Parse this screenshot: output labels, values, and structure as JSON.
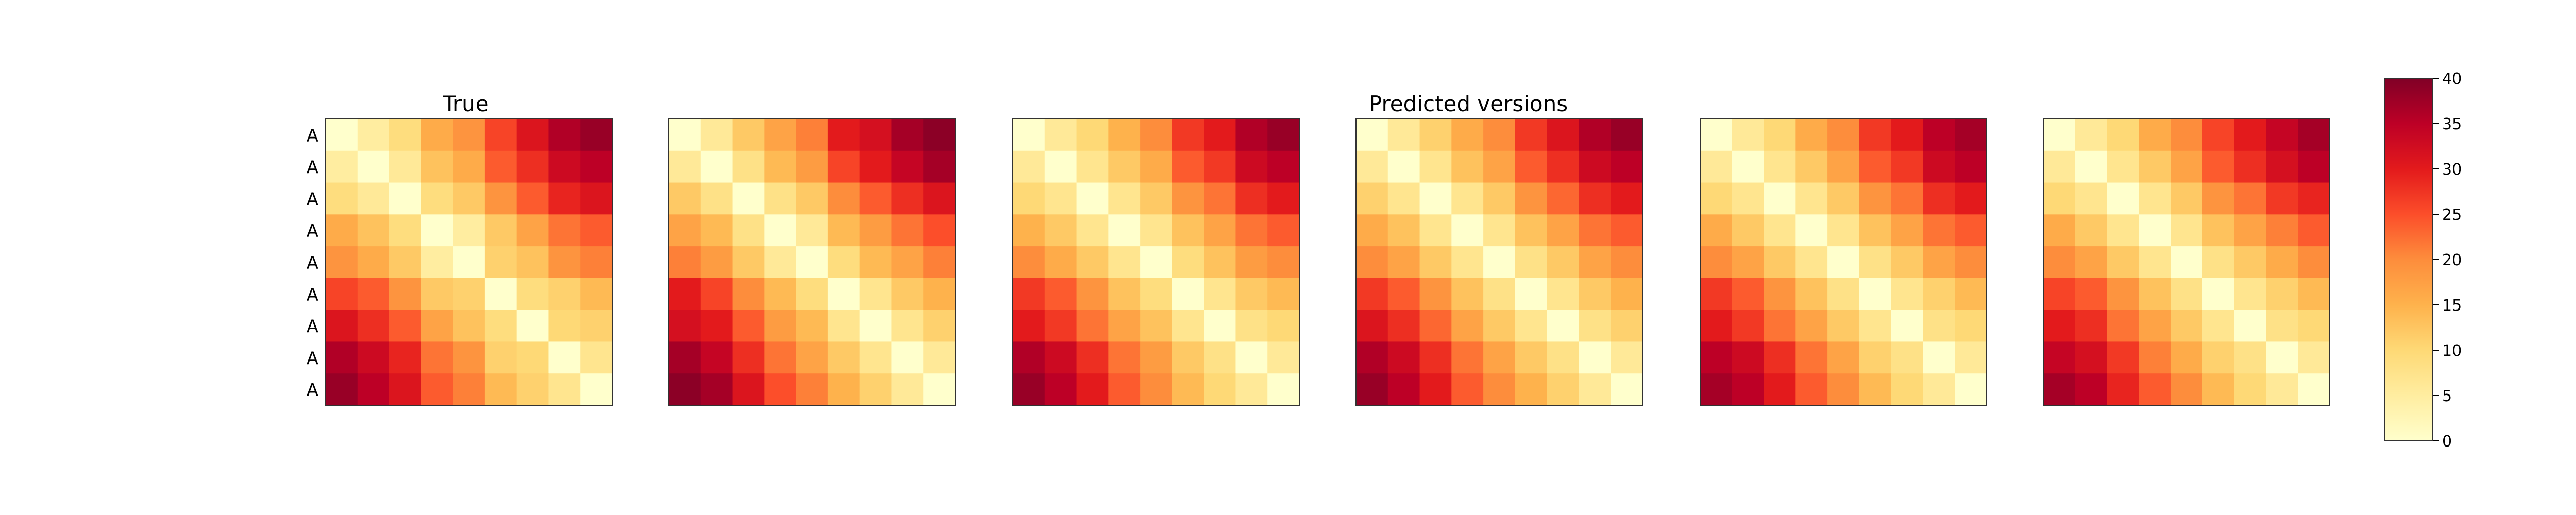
{
  "figure": {
    "panel_titles": [
      "True",
      "Predicted versions"
    ],
    "row_label": "A"
  },
  "chart_data": {
    "type": "heatmap",
    "colormap": "YlOrRd",
    "vmin": 0,
    "vmax": 40,
    "colorbar_ticks": [
      "0",
      "5",
      "10",
      "15",
      "20",
      "25",
      "30",
      "35",
      "40"
    ],
    "row_labels": [
      "A",
      "A",
      "A",
      "A",
      "A",
      "A",
      "A",
      "A",
      "A"
    ],
    "panels": [
      {
        "title": "True",
        "values": [
          [
            0,
            5,
            9,
            16,
            19,
            26,
            31,
            36,
            38
          ],
          [
            5,
            0,
            6,
            13,
            16,
            24,
            28,
            33,
            35
          ],
          [
            9,
            6,
            0,
            9,
            12,
            19,
            24,
            29,
            31
          ],
          [
            16,
            13,
            9,
            0,
            5,
            12,
            17,
            22,
            24
          ],
          [
            19,
            16,
            12,
            5,
            0,
            11,
            13,
            19,
            21
          ],
          [
            26,
            24,
            19,
            12,
            11,
            0,
            9,
            11,
            14
          ],
          [
            31,
            28,
            24,
            17,
            13,
            9,
            0,
            10,
            11
          ],
          [
            36,
            33,
            29,
            22,
            19,
            11,
            10,
            0,
            7
          ],
          [
            38,
            35,
            31,
            24,
            21,
            14,
            11,
            7,
            0
          ]
        ]
      },
      {
        "title": "",
        "values": [
          [
            0,
            6,
            12,
            17,
            21,
            30,
            32,
            37,
            39
          ],
          [
            6,
            0,
            8,
            14,
            18,
            26,
            30,
            34,
            37
          ],
          [
            12,
            8,
            0,
            8,
            12,
            20,
            24,
            28,
            31
          ],
          [
            17,
            14,
            8,
            0,
            6,
            14,
            18,
            22,
            25
          ],
          [
            21,
            18,
            12,
            6,
            0,
            9,
            14,
            17,
            21
          ],
          [
            30,
            26,
            20,
            14,
            9,
            0,
            7,
            12,
            15
          ],
          [
            32,
            30,
            24,
            18,
            14,
            7,
            0,
            7,
            11
          ],
          [
            37,
            34,
            28,
            22,
            17,
            12,
            7,
            0,
            6
          ],
          [
            39,
            37,
            31,
            25,
            21,
            15,
            11,
            6,
            0
          ]
        ]
      },
      {
        "title": "",
        "values": [
          [
            0,
            6,
            10,
            15,
            20,
            27,
            30,
            36,
            38
          ],
          [
            6,
            0,
            7,
            12,
            16,
            24,
            27,
            33,
            35
          ],
          [
            10,
            7,
            0,
            7,
            12,
            19,
            22,
            28,
            30
          ],
          [
            15,
            12,
            7,
            0,
            7,
            13,
            17,
            22,
            24
          ],
          [
            20,
            16,
            12,
            7,
            0,
            9,
            13,
            18,
            20
          ],
          [
            27,
            24,
            19,
            13,
            9,
            0,
            7,
            12,
            14
          ],
          [
            30,
            27,
            22,
            17,
            13,
            7,
            0,
            8,
            10
          ],
          [
            36,
            33,
            28,
            22,
            18,
            12,
            8,
            0,
            6
          ],
          [
            38,
            35,
            30,
            24,
            20,
            14,
            10,
            6,
            0
          ]
        ]
      },
      {
        "title": "Predicted versions",
        "values": [
          [
            0,
            6,
            11,
            16,
            20,
            27,
            31,
            36,
            38
          ],
          [
            6,
            0,
            7,
            13,
            17,
            24,
            28,
            33,
            35
          ],
          [
            11,
            7,
            0,
            7,
            12,
            19,
            23,
            28,
            30
          ],
          [
            16,
            13,
            7,
            0,
            7,
            13,
            17,
            22,
            24
          ],
          [
            20,
            17,
            12,
            7,
            0,
            8,
            12,
            17,
            20
          ],
          [
            27,
            24,
            19,
            13,
            8,
            0,
            7,
            12,
            15
          ],
          [
            31,
            28,
            23,
            17,
            12,
            7,
            0,
            8,
            11
          ],
          [
            36,
            33,
            28,
            22,
            17,
            12,
            8,
            0,
            6
          ],
          [
            38,
            35,
            30,
            24,
            20,
            15,
            11,
            6,
            0
          ]
        ]
      },
      {
        "title": "",
        "values": [
          [
            0,
            6,
            10,
            16,
            20,
            27,
            30,
            35,
            37
          ],
          [
            6,
            0,
            7,
            12,
            17,
            24,
            27,
            33,
            35
          ],
          [
            10,
            7,
            0,
            7,
            12,
            19,
            22,
            28,
            30
          ],
          [
            16,
            12,
            7,
            0,
            7,
            13,
            17,
            22,
            24
          ],
          [
            20,
            17,
            12,
            7,
            0,
            8,
            12,
            17,
            20
          ],
          [
            27,
            24,
            19,
            13,
            8,
            0,
            7,
            11,
            14
          ],
          [
            30,
            27,
            22,
            17,
            12,
            7,
            0,
            8,
            10
          ],
          [
            35,
            33,
            28,
            22,
            17,
            11,
            8,
            0,
            6
          ],
          [
            37,
            35,
            30,
            24,
            20,
            14,
            10,
            6,
            0
          ]
        ]
      },
      {
        "title": "",
        "values": [
          [
            0,
            6,
            10,
            16,
            20,
            26,
            30,
            34,
            37
          ],
          [
            6,
            0,
            7,
            12,
            17,
            24,
            28,
            32,
            35
          ],
          [
            10,
            7,
            0,
            7,
            12,
            19,
            22,
            27,
            29
          ],
          [
            16,
            12,
            7,
            0,
            7,
            13,
            17,
            21,
            24
          ],
          [
            20,
            17,
            12,
            7,
            0,
            8,
            12,
            16,
            20
          ],
          [
            26,
            24,
            19,
            13,
            8,
            0,
            7,
            11,
            14
          ],
          [
            30,
            28,
            22,
            17,
            12,
            7,
            0,
            8,
            10
          ],
          [
            34,
            32,
            27,
            21,
            16,
            11,
            8,
            0,
            6
          ],
          [
            37,
            35,
            29,
            24,
            20,
            14,
            10,
            6,
            0
          ]
        ]
      }
    ]
  }
}
